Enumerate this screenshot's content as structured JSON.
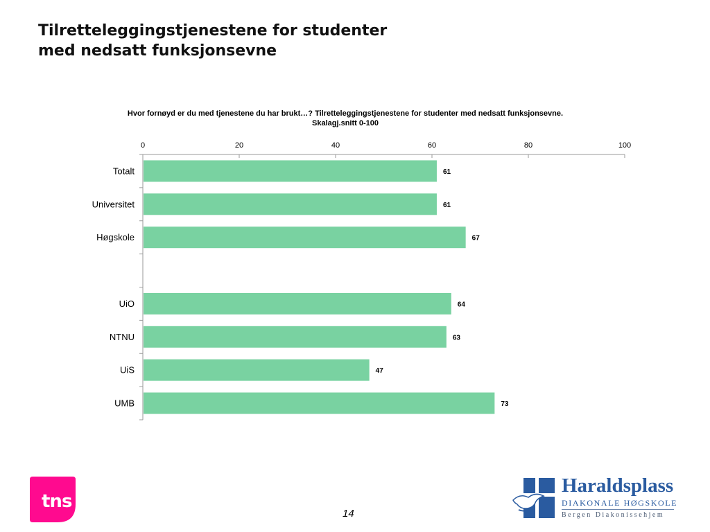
{
  "slide": {
    "title_line1": "Tilretteleggingstjenestene for studenter",
    "title_line2": "med nedsatt funksjonsevne",
    "page_number": "14"
  },
  "logos": {
    "tns": {
      "text": "tns",
      "color": "#ff0a8f"
    },
    "haraldsplass": {
      "name": "Haraldsplass",
      "subtitle": "DIAKONALE HØGSKOLE",
      "tagline": "Bergen Diakonissehjem",
      "color": "#2a5ba0"
    }
  },
  "chart_data": {
    "type": "bar",
    "orientation": "horizontal",
    "title_line1": "Hvor fornøyd er du med tjenestene du har brukt…? Tilretteleggingstjenestene for studenter med nedsatt funksjonsevne.",
    "title_line2": "Skalagj.snitt 0-100",
    "categories": [
      "Totalt",
      "Universitet",
      "Høgskole",
      "",
      "UiO",
      "NTNU",
      "UiS",
      "UMB"
    ],
    "values": [
      61,
      61,
      67,
      null,
      64,
      63,
      47,
      73
    ],
    "xlim": [
      0,
      100
    ],
    "x_ticks": [
      0,
      20,
      40,
      60,
      80,
      100
    ],
    "x_axis_position": "top",
    "grid": false,
    "legend": "none",
    "bar_color": "#79d2a1",
    "data_labels": true
  }
}
